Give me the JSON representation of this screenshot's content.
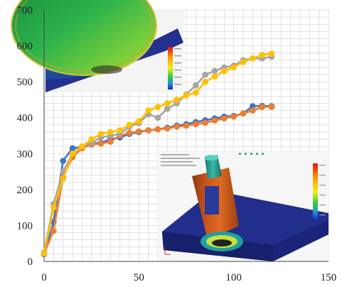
{
  "chart_data": {
    "type": "line",
    "title": "",
    "xlabel": "",
    "ylabel": "",
    "xlim": [
      0,
      150
    ],
    "ylim": [
      0,
      700
    ],
    "x_ticks": [
      0,
      50,
      100,
      150
    ],
    "y_ticks": [
      0,
      100,
      200,
      300,
      400,
      500,
      600,
      700
    ],
    "grid": true,
    "legend": "none",
    "series": [
      {
        "color": "#4472c4",
        "marker": "circle",
        "points": [
          [
            0,
            20
          ],
          [
            5,
            110
          ],
          [
            10,
            280
          ],
          [
            15,
            315
          ],
          [
            20,
            318
          ],
          [
            25,
            328
          ],
          [
            30,
            330
          ],
          [
            35,
            340
          ],
          [
            40,
            345
          ],
          [
            45,
            355
          ],
          [
            50,
            360
          ],
          [
            55,
            365
          ],
          [
            60,
            368
          ],
          [
            65,
            372
          ],
          [
            70,
            378
          ],
          [
            75,
            382
          ],
          [
            80,
            388
          ],
          [
            85,
            393
          ],
          [
            90,
            398
          ],
          [
            95,
            403
          ],
          [
            100,
            405
          ],
          [
            105,
            412
          ],
          [
            110,
            432
          ],
          [
            115,
            433
          ],
          [
            120,
            432
          ]
        ]
      },
      {
        "color": "#ed7d31",
        "marker": "circle",
        "points": [
          [
            0,
            22
          ],
          [
            5,
            85
          ],
          [
            10,
            235
          ],
          [
            15,
            290
          ],
          [
            20,
            315
          ],
          [
            25,
            325
          ],
          [
            30,
            328
          ],
          [
            35,
            333
          ],
          [
            40,
            350
          ],
          [
            45,
            358
          ],
          [
            50,
            362
          ],
          [
            55,
            365
          ],
          [
            60,
            368
          ],
          [
            65,
            370
          ],
          [
            70,
            375
          ],
          [
            75,
            378
          ],
          [
            80,
            382
          ],
          [
            85,
            386
          ],
          [
            90,
            392
          ],
          [
            95,
            398
          ],
          [
            100,
            403
          ],
          [
            105,
            412
          ],
          [
            110,
            420
          ],
          [
            115,
            430
          ],
          [
            120,
            430
          ]
        ]
      },
      {
        "color": "#a5a5a5",
        "marker": "circle",
        "points": [
          [
            0,
            25
          ],
          [
            5,
            160
          ],
          [
            10,
            250
          ],
          [
            15,
            300
          ],
          [
            20,
            320
          ],
          [
            25,
            330
          ],
          [
            30,
            345
          ],
          [
            35,
            350
          ],
          [
            40,
            355
          ],
          [
            45,
            375
          ],
          [
            50,
            385
          ],
          [
            55,
            410
          ],
          [
            60,
            400
          ],
          [
            65,
            425
          ],
          [
            70,
            440
          ],
          [
            75,
            465
          ],
          [
            80,
            490
          ],
          [
            85,
            520
          ],
          [
            90,
            530
          ],
          [
            95,
            540
          ],
          [
            100,
            545
          ],
          [
            105,
            560
          ],
          [
            110,
            565
          ],
          [
            115,
            565
          ],
          [
            120,
            570
          ]
        ]
      },
      {
        "color": "#ffc000",
        "marker": "circle",
        "points": [
          [
            0,
            22
          ],
          [
            5,
            150
          ],
          [
            10,
            230
          ],
          [
            15,
            300
          ],
          [
            20,
            320
          ],
          [
            25,
            340
          ],
          [
            30,
            355
          ],
          [
            35,
            360
          ],
          [
            40,
            365
          ],
          [
            45,
            380
          ],
          [
            50,
            390
          ],
          [
            55,
            420
          ],
          [
            60,
            430
          ],
          [
            65,
            440
          ],
          [
            70,
            450
          ],
          [
            75,
            462
          ],
          [
            80,
            470
          ],
          [
            85,
            500
          ],
          [
            90,
            515
          ],
          [
            95,
            530
          ],
          [
            100,
            540
          ],
          [
            105,
            555
          ],
          [
            110,
            565
          ],
          [
            115,
            575
          ],
          [
            120,
            578
          ]
        ]
      }
    ]
  },
  "images": [
    {
      "name": "fea-contour-disc-render"
    },
    {
      "name": "fea-contour-tool-render"
    }
  ]
}
